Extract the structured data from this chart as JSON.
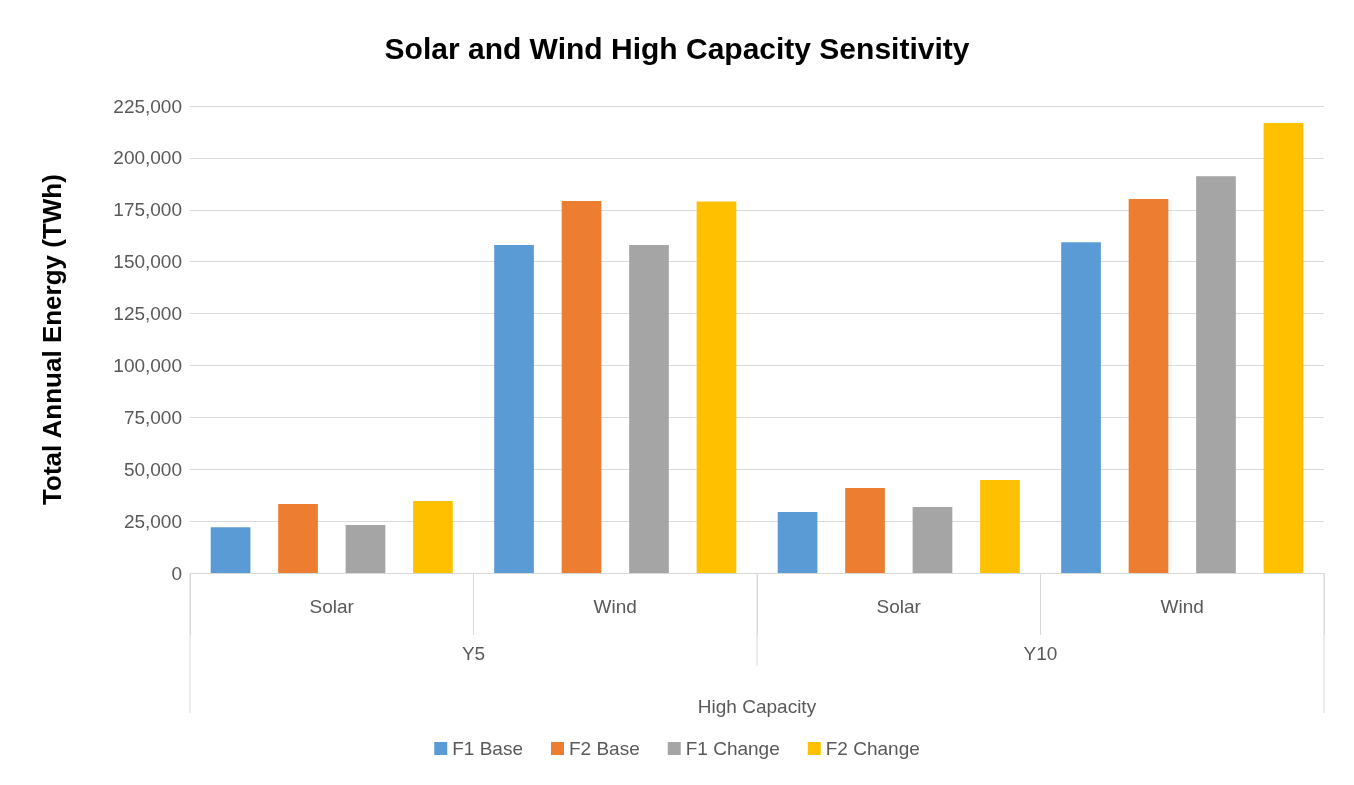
{
  "chart_data": {
    "type": "bar",
    "title": "Solar and Wind High Capacity Sensitivity",
    "ylabel": "Total Annual Energy (TWh)",
    "xlabel": "High Capacity",
    "categories": [
      "Solar",
      "Wind",
      "Solar",
      "Wind"
    ],
    "annotations": [
      "Y5",
      "Y10"
    ],
    "series": [
      {
        "name": "F1 Base",
        "color": "#5b9bd5",
        "values": [
          22000,
          158000,
          29400,
          159400
        ]
      },
      {
        "name": "F2 Base",
        "color": "#ed7d31",
        "values": [
          33200,
          179200,
          41000,
          180200
        ]
      },
      {
        "name": "F1 Change",
        "color": "#a5a5a5",
        "values": [
          23100,
          158000,
          31800,
          191200
        ]
      },
      {
        "name": "F2 Change",
        "color": "#ffc000",
        "values": [
          34700,
          179000,
          44800,
          216800
        ]
      }
    ],
    "ylim": [
      0,
      225000
    ],
    "yticks": [
      0,
      {
        "value": 25000,
        "label": "25,000"
      },
      {
        "value": 50000,
        "label": "50,000"
      },
      {
        "value": 75000,
        "label": "75,000"
      },
      {
        "value": 100000,
        "label": "100,000"
      },
      {
        "value": 125000,
        "label": "125,000"
      },
      {
        "value": 150000,
        "label": "150,000"
      },
      {
        "value": 175000,
        "label": "175,000"
      },
      {
        "value": 200000,
        "label": "200,000"
      },
      {
        "value": 225000,
        "label": "225,000"
      }
    ],
    "grid": "y",
    "legend": "bottom"
  }
}
